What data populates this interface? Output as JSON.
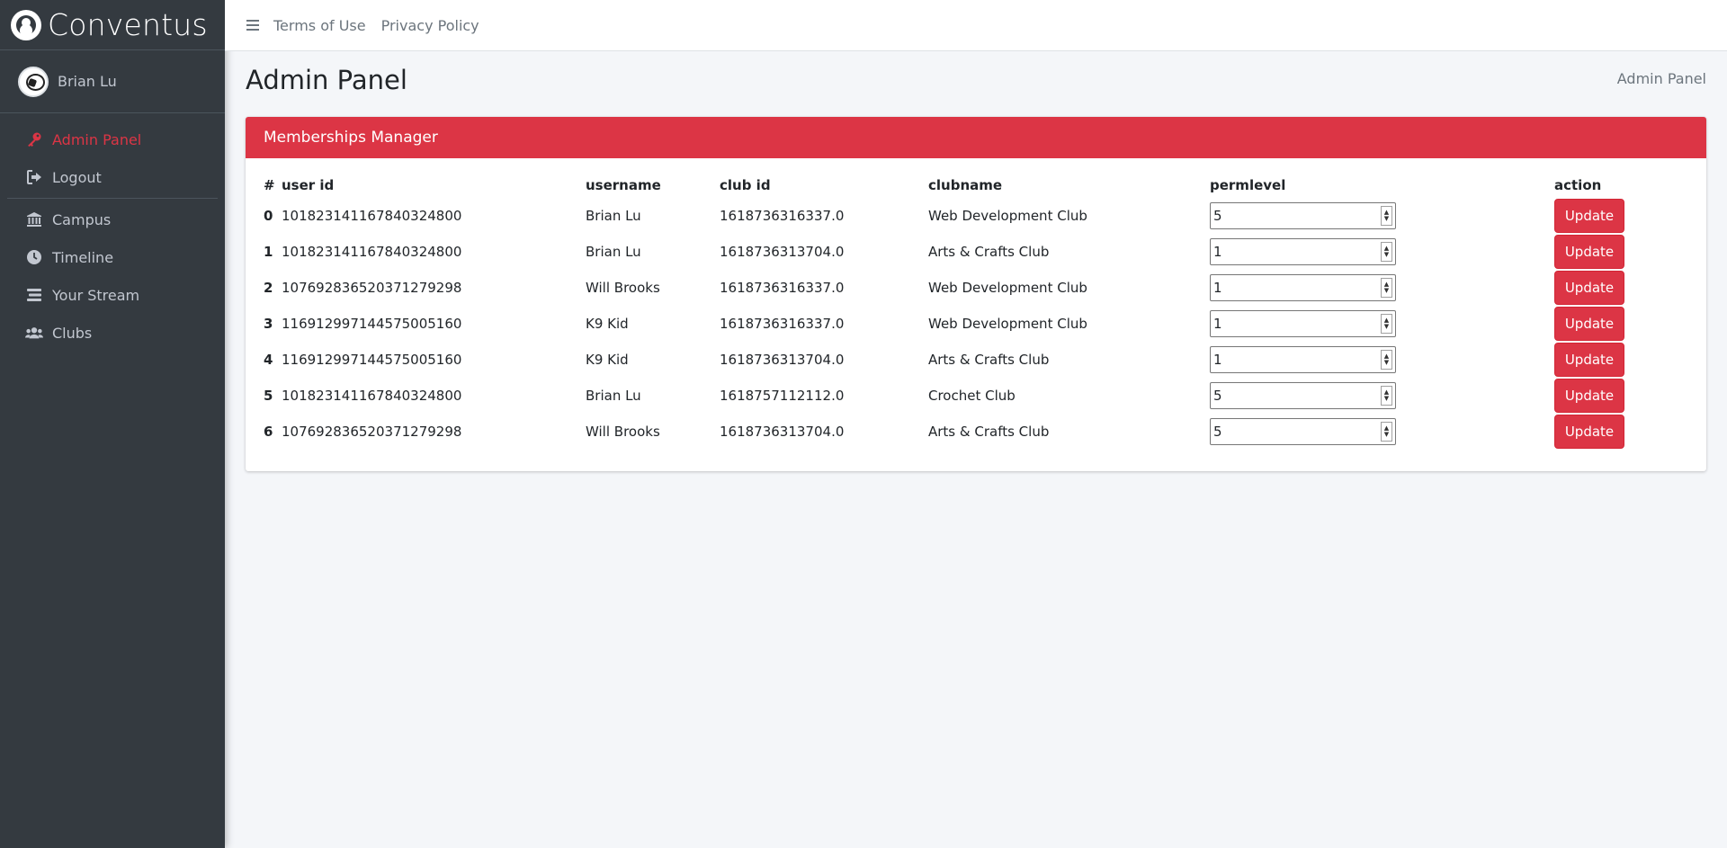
{
  "brand": {
    "name": "Conventus"
  },
  "user": {
    "name": "Brian Lu"
  },
  "sidebar": {
    "items": [
      {
        "label": "Admin Panel",
        "icon": "key-icon",
        "active": true
      },
      {
        "label": "Logout",
        "icon": "sign-out-icon"
      },
      {
        "label": "Campus",
        "icon": "university-icon"
      },
      {
        "label": "Timeline",
        "icon": "clock-icon"
      },
      {
        "label": "Your Stream",
        "icon": "stream-icon"
      },
      {
        "label": "Clubs",
        "icon": "users-icon"
      }
    ]
  },
  "topnav": {
    "links": [
      "Terms of Use",
      "Privacy Policy"
    ]
  },
  "page": {
    "title": "Admin Panel",
    "breadcrumb": "Admin Panel"
  },
  "card": {
    "title": "Memberships Manager",
    "headers": [
      "#",
      "user id",
      "username",
      "club id",
      "clubname",
      "permlevel",
      "action"
    ],
    "update_label": "Update",
    "rows": [
      {
        "idx": "0",
        "user_id": "101823141167840324800",
        "username": "Brian Lu",
        "club_id": "1618736316337.0",
        "clubname": "Web Development Club",
        "perm": "5"
      },
      {
        "idx": "1",
        "user_id": "101823141167840324800",
        "username": "Brian Lu",
        "club_id": "1618736313704.0",
        "clubname": "Arts & Crafts Club",
        "perm": "1"
      },
      {
        "idx": "2",
        "user_id": "107692836520371279298",
        "username": "Will Brooks",
        "club_id": "1618736316337.0",
        "clubname": "Web Development Club",
        "perm": "1"
      },
      {
        "idx": "3",
        "user_id": "116912997144575005160",
        "username": "K9 Kid",
        "club_id": "1618736316337.0",
        "clubname": "Web Development Club",
        "perm": "1"
      },
      {
        "idx": "4",
        "user_id": "116912997144575005160",
        "username": "K9 Kid",
        "club_id": "1618736313704.0",
        "clubname": "Arts & Crafts Club",
        "perm": "1"
      },
      {
        "idx": "5",
        "user_id": "101823141167840324800",
        "username": "Brian Lu",
        "club_id": "1618757112112.0",
        "clubname": "Crochet Club",
        "perm": "5"
      },
      {
        "idx": "6",
        "user_id": "107692836520371279298",
        "username": "Will Brooks",
        "club_id": "1618736313704.0",
        "clubname": "Arts & Crafts Club",
        "perm": "5"
      }
    ]
  },
  "colors": {
    "accent": "#dc3545",
    "sidebar_bg": "#343a40",
    "page_bg": "#f4f6f9"
  }
}
